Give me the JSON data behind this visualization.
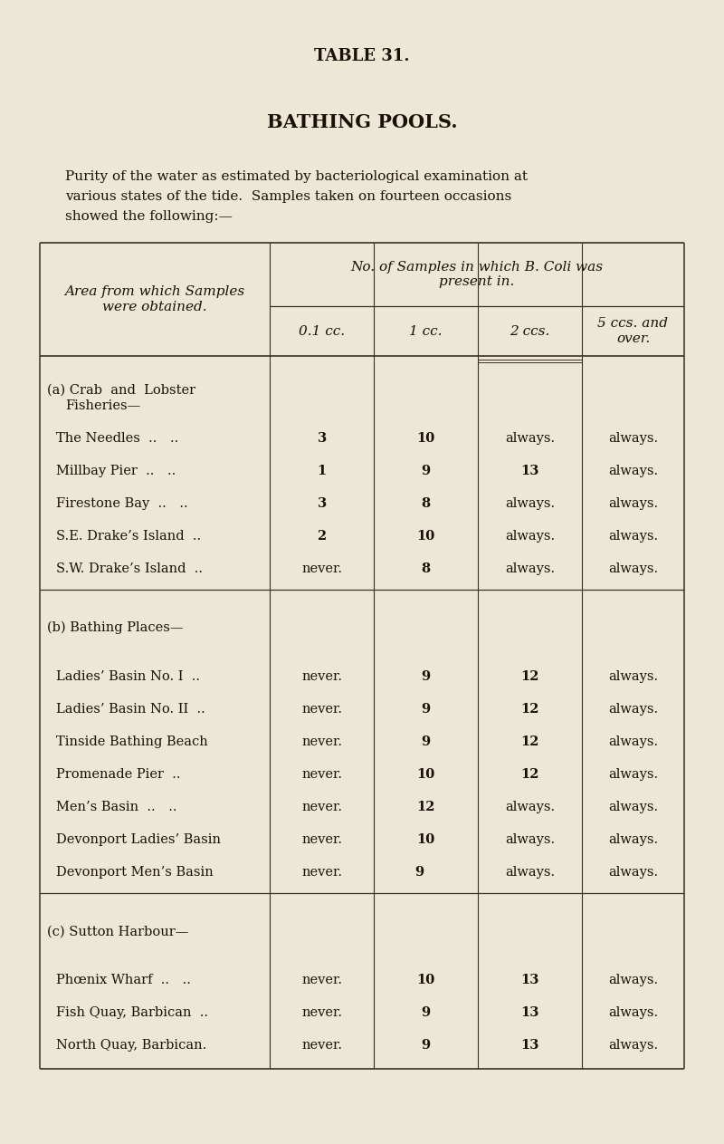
{
  "title": "TABLE 31.",
  "subtitle": "BATHING POOLS.",
  "intro_lines": [
    "Purity of the water as estimated by bacteriological examination at",
    "various states of the tide.  Samples taken on fourteen occasions",
    "showed the following:—"
  ],
  "bg_color": "#ede8d5",
  "text_color": "#1a1008",
  "col_header_left_line1": "Area from which Samples",
  "col_header_left_line2": "were obtained.",
  "col_header_right_line1": "No. of Samples in which B. Coli was",
  "col_header_right_line2": "present in.",
  "col_headers": [
    "0.1 cc.",
    "1 cc.",
    "2 ccs.",
    "5 ccs. and\nover."
  ],
  "sections": [
    {
      "label_line1": "(a) Crab  and  Lobster",
      "label_line2": "Fisheries—",
      "label_style": "small_caps",
      "rows": [
        {
          "name": "The Needles  .. ..",
          "vals": [
            "3",
            "10",
            "always.",
            "always."
          ]
        },
        {
          "name": "Millbay Pier  .. ..",
          "vals": [
            "1",
            "9",
            "13",
            "always."
          ]
        },
        {
          "name": "Firestone Bay  .. ..",
          "vals": [
            "3",
            "8",
            "always.",
            "always."
          ]
        },
        {
          "name": "S.E. Drake’s Island  ..",
          "vals": [
            "2",
            "10",
            "always.",
            "always."
          ]
        },
        {
          "name": "S.W. Drake’s Island  ..",
          "vals": [
            "never.",
            "8",
            "always.",
            "always."
          ]
        }
      ]
    },
    {
      "label_line1": "(b) Bathing Places—",
      "label_line2": null,
      "label_style": "small_caps",
      "rows": [
        {
          "name": "Ladies’ Basin No. I  ..",
          "vals": [
            "never.",
            "9",
            "12",
            "always."
          ]
        },
        {
          "name": "Ladies’ Basin No. II  ..",
          "vals": [
            "never.",
            "9",
            "12",
            "always."
          ]
        },
        {
          "name": "Tinside Bathing Beach",
          "vals": [
            "never.",
            "9",
            "12",
            "always."
          ]
        },
        {
          "name": "Promenade Pier  ..",
          "vals": [
            "never.",
            "10",
            "12",
            "always."
          ]
        },
        {
          "name": "Men’s Basin  .. ..",
          "vals": [
            "never.",
            "12",
            "always.",
            "always."
          ]
        },
        {
          "name": "Devonport Ladies’ Basin",
          "vals": [
            "never.",
            "10",
            "always.",
            "always."
          ]
        },
        {
          "name": "Devonport Men’s Basin",
          "vals": [
            "never.",
            "9  ",
            "always.",
            "always."
          ]
        }
      ]
    },
    {
      "label_line1": "(c) Sutton Harbour—",
      "label_line2": null,
      "label_style": "small_caps",
      "rows": [
        {
          "name": "Phœnix Wharf  .. ..",
          "vals": [
            "never.",
            "10",
            "13",
            "always."
          ]
        },
        {
          "name": "Fish Quay, Barbican  ..",
          "vals": [
            "never.",
            "9",
            "13",
            "always."
          ]
        },
        {
          "name": "North Quay, Barbican.",
          "vals": [
            "never.",
            "9",
            "13",
            "always."
          ]
        }
      ]
    }
  ]
}
